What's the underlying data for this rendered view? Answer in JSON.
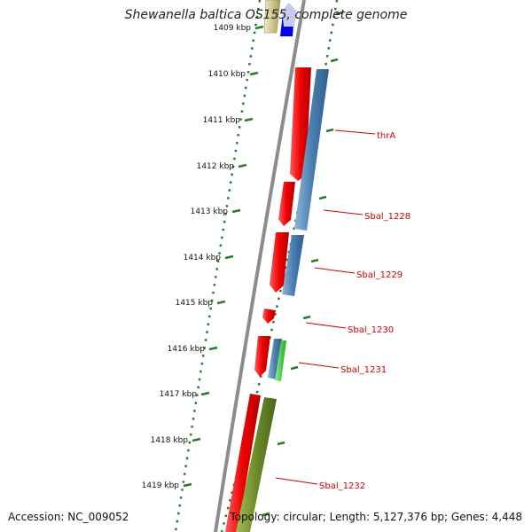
{
  "title": "Shewanella baltica OS155, complete genome",
  "footer": {
    "accession": "Accession: NC_009052",
    "summary": "Topology: circular; Length: 5,127,376 bp; Genes: 4,448"
  },
  "ticks": [
    "1409 kbp",
    "1410 kbp",
    "1411 kbp",
    "1412 kbp",
    "1413 kbp",
    "1414 kbp",
    "1415 kbp",
    "1416 kbp",
    "1417 kbp",
    "1418 kbp",
    "1419 kbp"
  ],
  "genes": [
    "thrA",
    "Sbal_1228",
    "Sbal_1229",
    "Sbal_1230",
    "Sbal_1231",
    "Sbal_1232"
  ],
  "colors": {
    "forward": "#e00000",
    "reverse": "#4a7fb0",
    "rrna": "#6b8a2a",
    "green": "#33cc33",
    "blue": "#0000ee",
    "backbone": "#8c8c8c",
    "ticks": "#2d7a2d",
    "label": "#cc0000"
  }
}
